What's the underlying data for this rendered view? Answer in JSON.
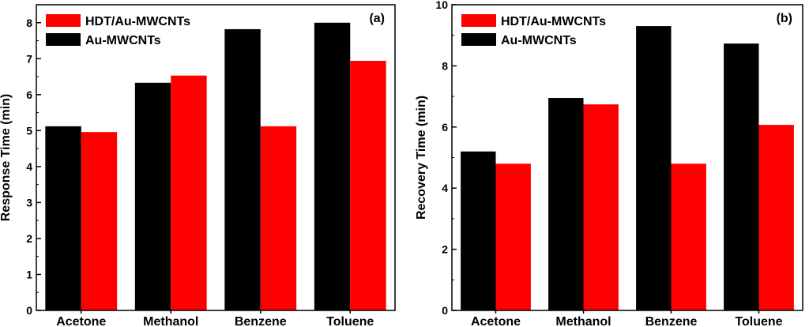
{
  "chart_data": [
    {
      "type": "bar",
      "panel_label": "(a)",
      "categories": [
        "Acetone",
        "Methanol",
        "Benzene",
        "Toluene"
      ],
      "series": [
        {
          "name": "Au-MWCNTs",
          "color": "#000000",
          "values": [
            5.12,
            6.33,
            7.82,
            8.0
          ]
        },
        {
          "name": "HDT/Au-MWCNTs",
          "color": "#ff0000",
          "values": [
            4.96,
            6.53,
            5.12,
            6.94
          ]
        }
      ],
      "legend_order": [
        "HDT/Au-MWCNTs",
        "Au-MWCNTs"
      ],
      "ylabel": "Response Time (min)",
      "xlabel": "",
      "ylim": [
        0,
        8.5
      ],
      "yticks": [
        0,
        1,
        2,
        3,
        4,
        5,
        6,
        7,
        8
      ],
      "ytick_labels": [
        "0",
        "1",
        "2",
        "3",
        "4",
        "5",
        "6",
        "7",
        "8"
      ],
      "legend_position": "top-left"
    },
    {
      "type": "bar",
      "panel_label": "(b)",
      "categories": [
        "Acetone",
        "Methanol",
        "Benzene",
        "Toluene"
      ],
      "series": [
        {
          "name": "Au-MWCNTs",
          "color": "#000000",
          "values": [
            5.2,
            6.95,
            9.3,
            8.73
          ]
        },
        {
          "name": "HDT/Au-MWCNTs",
          "color": "#ff0000",
          "values": [
            4.8,
            6.74,
            4.8,
            6.07
          ]
        }
      ],
      "legend_order": [
        "HDT/Au-MWCNTs",
        "Au-MWCNTs"
      ],
      "ylabel": "Recovery Time (min)",
      "xlabel": "",
      "ylim": [
        0,
        10
      ],
      "yticks": [
        0,
        2,
        4,
        6,
        8,
        10
      ],
      "ytick_labels": [
        "0",
        "2",
        "4",
        "6",
        "8",
        "10"
      ],
      "legend_position": "top-left"
    }
  ]
}
